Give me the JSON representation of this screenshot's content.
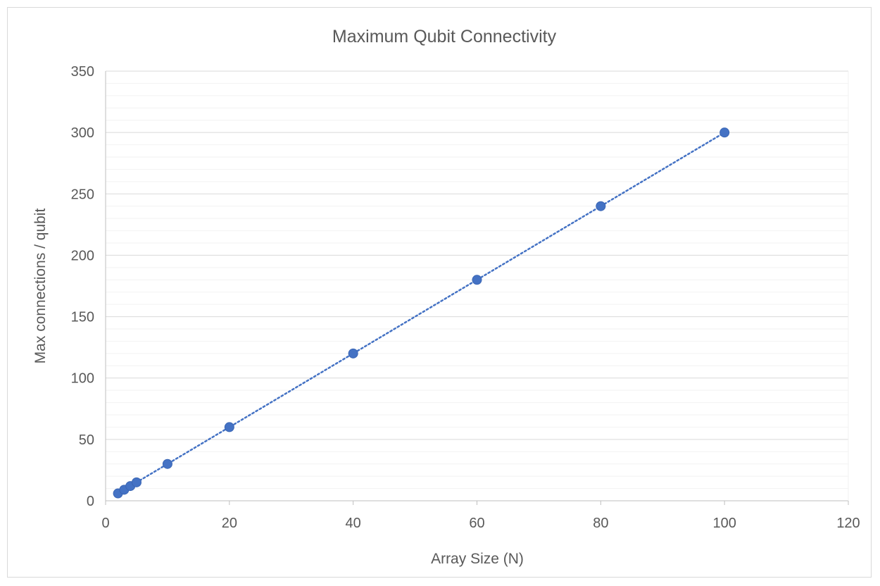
{
  "chart_data": {
    "type": "scatter",
    "title": "Maximum Qubit Connectivity",
    "xlabel": "Array Size (N)",
    "ylabel": "Max connections / qubit",
    "xlim": [
      0,
      120
    ],
    "ylim": [
      0,
      350
    ],
    "x_ticks": [
      "0",
      "20",
      "40",
      "60",
      "80",
      "100",
      "120"
    ],
    "y_ticks": [
      "0",
      "50",
      "100",
      "150",
      "200",
      "250",
      "300",
      "350"
    ],
    "x_tick_values": [
      0,
      20,
      40,
      60,
      80,
      100,
      120
    ],
    "y_tick_values": [
      0,
      50,
      100,
      150,
      200,
      250,
      300,
      350
    ],
    "y_minor_step": 10,
    "grid": true,
    "legend": "none",
    "series": [
      {
        "x": [
          2,
          3,
          4,
          5,
          10,
          20,
          40,
          60,
          80,
          100
        ],
        "y": [
          6,
          9,
          12,
          15,
          30,
          60,
          120,
          180,
          240,
          300
        ],
        "marker_color": "#4472c4",
        "trendline": {
          "type": "linear",
          "style": "dotted",
          "color": "#4472c4"
        }
      }
    ],
    "colors": {
      "major_grid": "#d9d9d9",
      "minor_grid": "#f2f2f2",
      "axis_line": "#bfbfbf",
      "text": "#595959"
    }
  }
}
